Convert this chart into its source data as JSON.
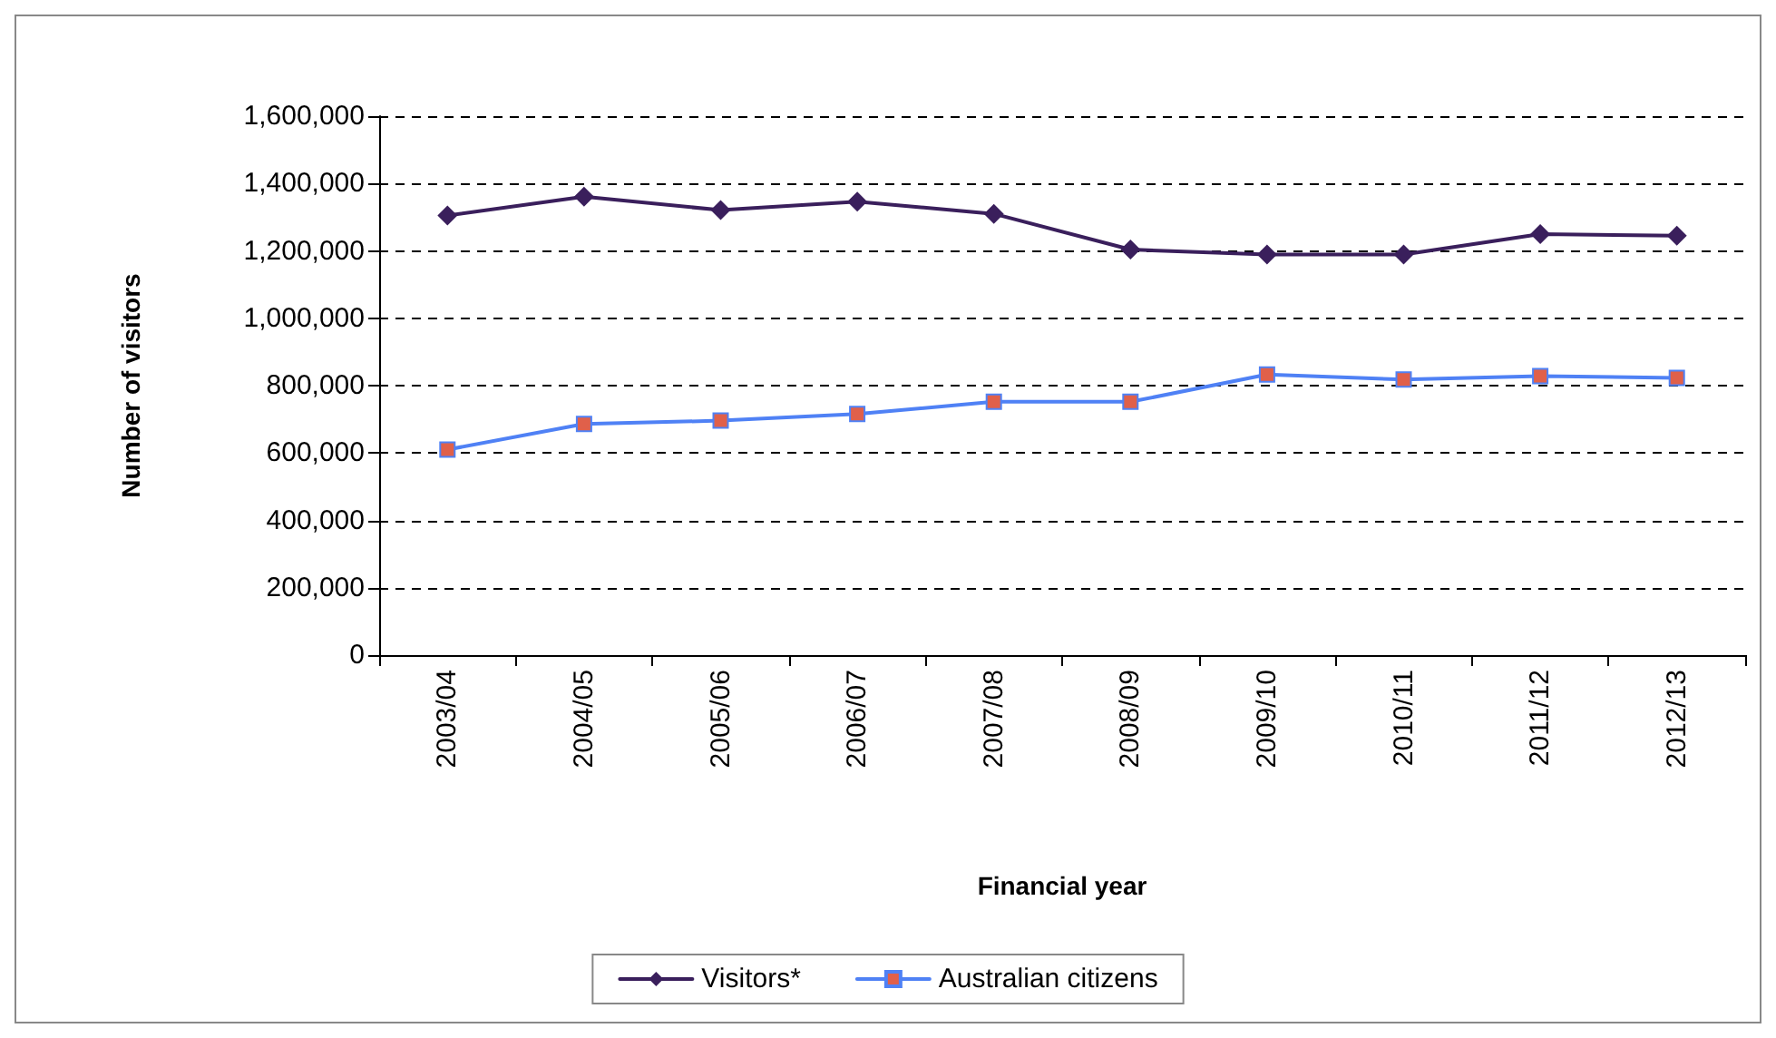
{
  "chart_data": {
    "type": "line",
    "xlabel": "Financial year",
    "ylabel": "Number of visitors",
    "categories": [
      "2003/04",
      "2004/05",
      "2005/06",
      "2006/07",
      "2007/08",
      "2008/09",
      "2009/10",
      "2010/11",
      "2011/12",
      "2012/13"
    ],
    "series": [
      {
        "name": "Visitors*",
        "color": "#3a1f5c",
        "marker": "diamond",
        "values": [
          1305000,
          1361000,
          1321000,
          1346000,
          1310000,
          1204000,
          1189000,
          1189000,
          1250000,
          1245000
        ]
      },
      {
        "name": "Australian citizens",
        "color": "#4f81f5",
        "marker": "square",
        "values": [
          610000,
          686000,
          696000,
          716000,
          752000,
          752000,
          833000,
          818000,
          828000,
          823000
        ]
      }
    ],
    "ylim": [
      0,
      1600000
    ],
    "yticks": [
      0,
      {
        "value": 200000,
        "label": "200,000"
      },
      {
        "value": 400000,
        "label": "400,000"
      },
      {
        "value": 600000,
        "label": "600,000"
      },
      {
        "value": 800000,
        "label": "800,000"
      },
      {
        "value": 1000000,
        "label": "1,000,000"
      },
      {
        "value": 1200000,
        "label": "1,200,000"
      },
      {
        "value": 1400000,
        "label": "1,400,000"
      },
      {
        "value": 1600000,
        "label": "1,600,000"
      }
    ],
    "grid": "y",
    "legend": "bottom",
    "line_style": "solid"
  }
}
